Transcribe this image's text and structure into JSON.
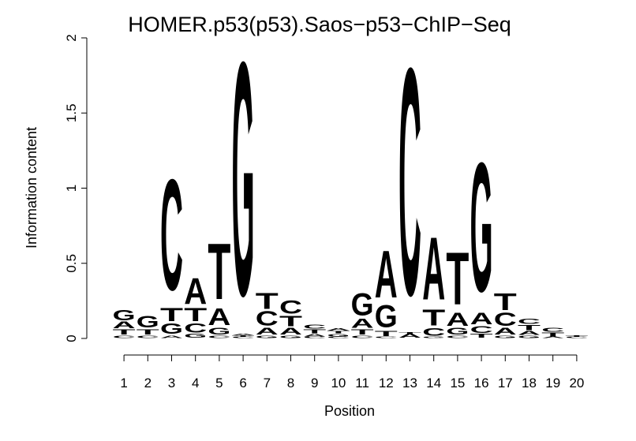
{
  "chart_data": {
    "type": "sequence-logo",
    "title": "HOMER.p53(p53).Saos−p53−ChIP−Seq",
    "xlabel": "Position",
    "ylabel": "Information content",
    "ylim": [
      0,
      2
    ],
    "yticks": [
      "0",
      "0.5",
      "1",
      "1.5",
      "2"
    ],
    "xticks": [
      "1",
      "2",
      "3",
      "4",
      "5",
      "6",
      "7",
      "8",
      "9",
      "10",
      "11",
      "12",
      "13",
      "14",
      "15",
      "16",
      "17",
      "18",
      "19",
      "20"
    ],
    "colors": {
      "A": "#00cc00",
      "C": "#0000ff",
      "G": "#ffa500",
      "T": "#ff0000"
    },
    "positions": [
      {
        "pos": 1,
        "stack": [
          [
            "C",
            0.02
          ],
          [
            "T",
            0.04
          ],
          [
            "A",
            0.05
          ],
          [
            "G",
            0.08
          ]
        ]
      },
      {
        "pos": 2,
        "stack": [
          [
            "C",
            0.02
          ],
          [
            "T",
            0.04
          ],
          [
            "G",
            0.09
          ]
        ]
      },
      {
        "pos": 3,
        "stack": [
          [
            "A",
            0.02
          ],
          [
            "G",
            0.08
          ],
          [
            "T",
            0.1
          ],
          [
            "C",
            0.85
          ]
        ]
      },
      {
        "pos": 4,
        "stack": [
          [
            "G",
            0.03
          ],
          [
            "C",
            0.07
          ],
          [
            "T",
            0.1
          ],
          [
            "A",
            0.2
          ]
        ]
      },
      {
        "pos": 5,
        "stack": [
          [
            "C",
            0.02
          ],
          [
            "G",
            0.05
          ],
          [
            "A",
            0.13
          ],
          [
            "T",
            0.43
          ]
        ]
      },
      {
        "pos": 6,
        "stack": [
          [
            "C",
            0.01
          ],
          [
            "T",
            0.01
          ],
          [
            "A",
            0.01
          ],
          [
            "G",
            1.79
          ]
        ]
      },
      {
        "pos": 7,
        "stack": [
          [
            "G",
            0.02
          ],
          [
            "A",
            0.05
          ],
          [
            "C",
            0.11
          ],
          [
            "T",
            0.12
          ]
        ]
      },
      {
        "pos": 8,
        "stack": [
          [
            "G",
            0.02
          ],
          [
            "A",
            0.05
          ],
          [
            "T",
            0.08
          ],
          [
            "C",
            0.1
          ]
        ]
      },
      {
        "pos": 9,
        "stack": [
          [
            "C",
            0.01
          ],
          [
            "A",
            0.02
          ],
          [
            "T",
            0.03
          ],
          [
            "C",
            0.03
          ]
        ]
      },
      {
        "pos": 10,
        "stack": [
          [
            "C",
            0.01
          ],
          [
            "G",
            0.02
          ],
          [
            "T",
            0.02
          ],
          [
            "A",
            0.02
          ]
        ]
      },
      {
        "pos": 11,
        "stack": [
          [
            "C",
            0.02
          ],
          [
            "T",
            0.04
          ],
          [
            "A",
            0.07
          ],
          [
            "G",
            0.17
          ]
        ]
      },
      {
        "pos": 12,
        "stack": [
          [
            "C",
            0.01
          ],
          [
            "T",
            0.04
          ],
          [
            "G",
            0.17
          ],
          [
            "A",
            0.36
          ]
        ]
      },
      {
        "pos": 13,
        "stack": [
          [
            "A",
            0.03
          ],
          [
            "T",
            0.01
          ],
          [
            "C",
            1.74
          ]
        ]
      },
      {
        "pos": 14,
        "stack": [
          [
            "G",
            0.01
          ],
          [
            "C",
            0.06
          ],
          [
            "T",
            0.12
          ],
          [
            "A",
            0.48
          ]
        ]
      },
      {
        "pos": 15,
        "stack": [
          [
            "C",
            0.02
          ],
          [
            "G",
            0.05
          ],
          [
            "A",
            0.1
          ],
          [
            "T",
            0.4
          ]
        ]
      },
      {
        "pos": 16,
        "stack": [
          [
            "T",
            0.03
          ],
          [
            "C",
            0.05
          ],
          [
            "A",
            0.09
          ],
          [
            "G",
            0.99
          ]
        ]
      },
      {
        "pos": 17,
        "stack": [
          [
            "G",
            0.02
          ],
          [
            "A",
            0.05
          ],
          [
            "C",
            0.1
          ],
          [
            "T",
            0.13
          ]
        ]
      },
      {
        "pos": 18,
        "stack": [
          [
            "G",
            0.02
          ],
          [
            "A",
            0.03
          ],
          [
            "T",
            0.04
          ],
          [
            "C",
            0.04
          ]
        ]
      },
      {
        "pos": 19,
        "stack": [
          [
            "A",
            0.01
          ],
          [
            "T",
            0.03
          ],
          [
            "C",
            0.03
          ]
        ]
      },
      {
        "pos": 20,
        "stack": [
          [
            "C",
            0.01
          ],
          [
            "T",
            0.01
          ]
        ]
      }
    ]
  }
}
